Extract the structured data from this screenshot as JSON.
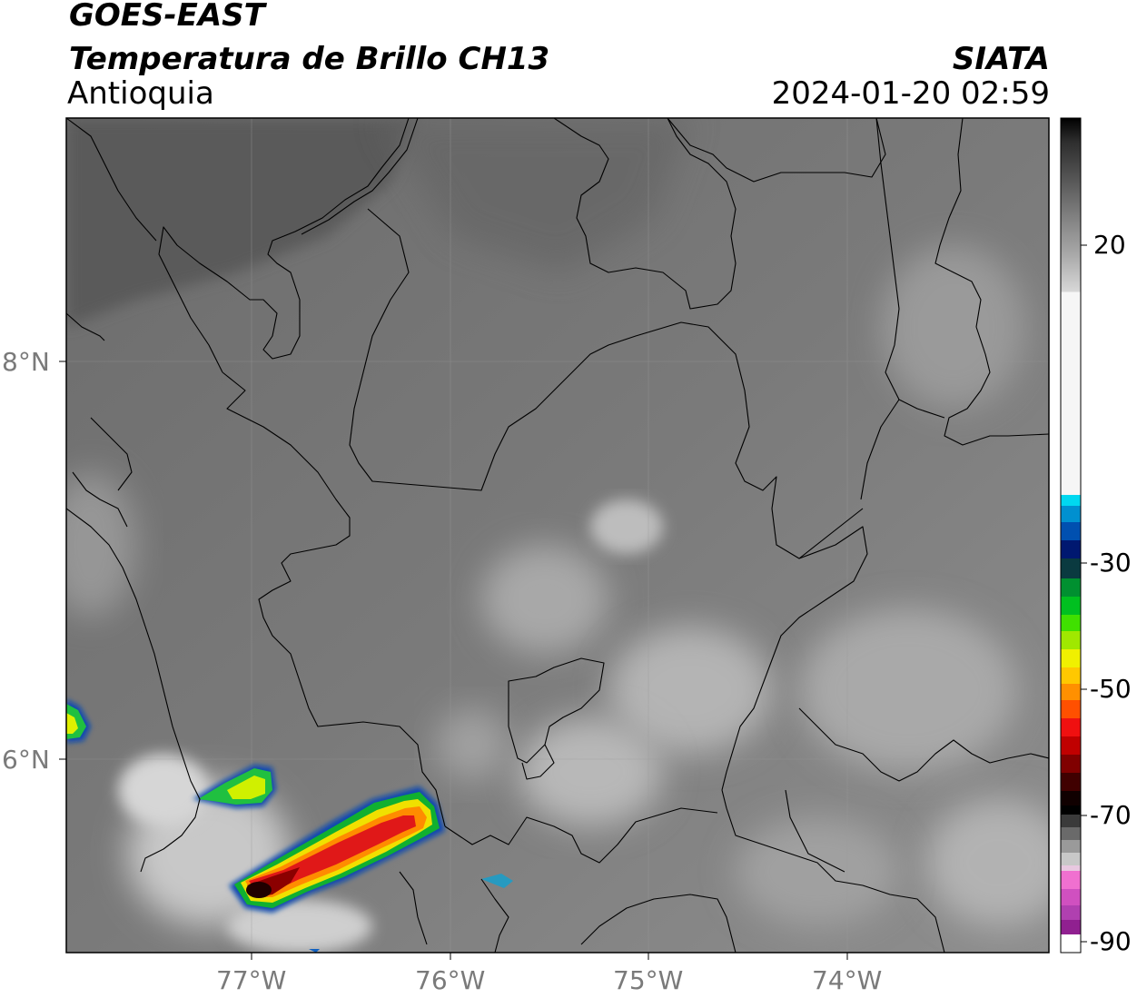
{
  "header": {
    "satellite": "GOES-EAST",
    "product": "Temperatura de Brillo CH13",
    "region": "Antioquia",
    "agency": "SIATA",
    "timestamp": "2024-01-20 02:59"
  },
  "axes": {
    "lat_labels": [
      "8°N",
      "6°N"
    ],
    "lon_labels": [
      "77°W",
      "76°W",
      "75°W",
      "74°W"
    ]
  },
  "colorbar": {
    "tick_labels": [
      "20",
      "-30",
      "-50",
      "-70",
      "-90"
    ],
    "colors": {
      "dark_warm": "#2a2a2a",
      "mid_gray": "#8c8c8c",
      "white": "#f4f4f4",
      "cyan": "#00c8e6",
      "blue": "#1030a0",
      "green": "#10b020",
      "yellow": "#f0f000",
      "orange": "#ff9000",
      "red": "#e01010",
      "dark_red": "#400000",
      "black": "#000000",
      "pink": "#e060c0",
      "purple": "#9020a0"
    }
  }
}
